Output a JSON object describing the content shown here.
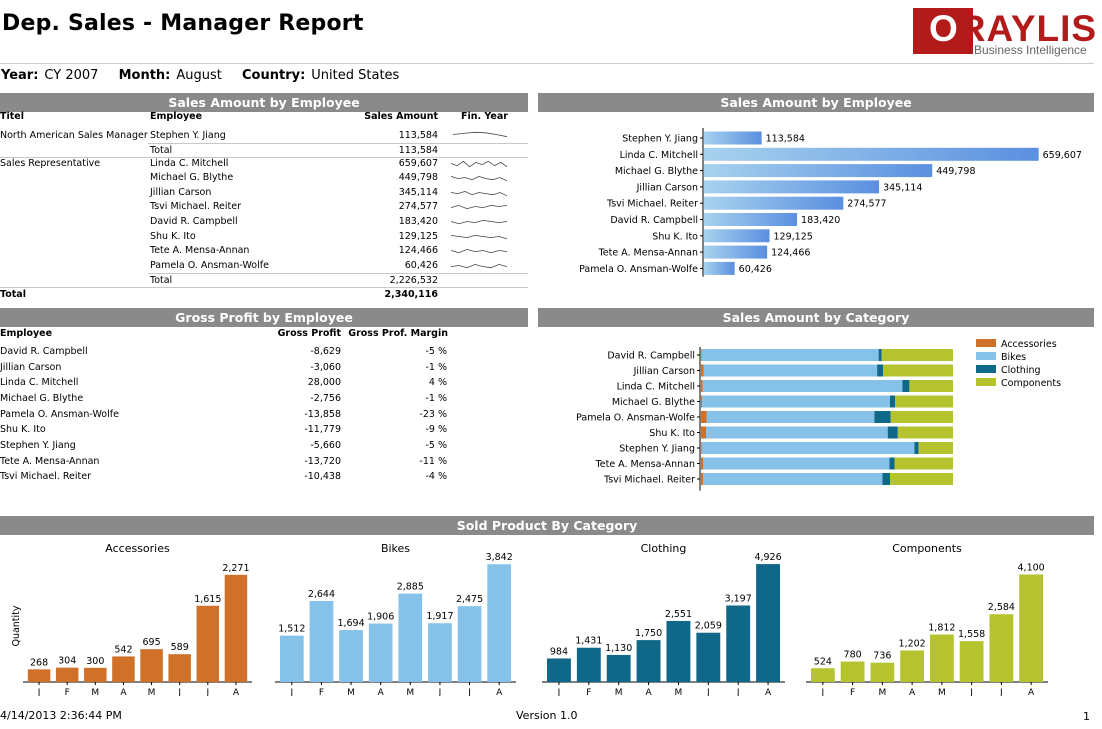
{
  "report": {
    "title": "Dep. Sales - Manager Report",
    "filters": [
      {
        "label": "Year:",
        "value": "CY 2007"
      },
      {
        "label": "Month:",
        "value": "August"
      },
      {
        "label": "Country:",
        "value": "United States"
      }
    ],
    "footer": {
      "timestamp": "4/14/2013 2:36:44 PM",
      "version": "Version 1.0",
      "page": "1"
    }
  },
  "logo": {
    "text": "ORAYLIS",
    "first_letter": "O",
    "rest": "RAYLIS",
    "tagline": "Business Intelligence",
    "color": "#b31b1b"
  },
  "sales_table": {
    "title": "Sales Amount by Employee",
    "columns": [
      "Titel",
      "Employee",
      "Sales Amount",
      "Fin. Year"
    ],
    "groups": [
      {
        "titel": "North American Sales Manager",
        "rows": [
          {
            "employee": "Stephen Y. Jiang",
            "amount": "113,584",
            "spark": [
              0.5,
              0.6,
              0.7,
              0.65,
              0.5,
              0.3
            ]
          }
        ],
        "total_label": "Total",
        "total": "113,584"
      },
      {
        "titel": "Sales Representative",
        "rows": [
          {
            "employee": "Linda C. Mitchell",
            "amount": "659,607",
            "spark": [
              0.5,
              0.3,
              0.7,
              0.2,
              0.6,
              0.4,
              0.7,
              0.3,
              0.6,
              0.2
            ]
          },
          {
            "employee": "Michael G. Blythe",
            "amount": "449,798",
            "spark": [
              0.6,
              0.4,
              0.5,
              0.3,
              0.6,
              0.4,
              0.3,
              0.5,
              0.2
            ]
          },
          {
            "employee": "Jillian Carson",
            "amount": "345,114",
            "spark": [
              0.5,
              0.4,
              0.6,
              0.3,
              0.5,
              0.4,
              0.3,
              0.5,
              0.2
            ]
          },
          {
            "employee": "Tsvi Michael. Reiter",
            "amount": "274,577",
            "spark": [
              0.4,
              0.6,
              0.3,
              0.5,
              0.4,
              0.6,
              0.5,
              0.6
            ]
          },
          {
            "employee": "David R. Campbell",
            "amount": "183,420",
            "spark": [
              0.5,
              0.3,
              0.5,
              0.4,
              0.6,
              0.5,
              0.4,
              0.5
            ]
          },
          {
            "employee": "Shu K. Ito",
            "amount": "129,125",
            "spark": [
              0.6,
              0.5,
              0.4,
              0.6,
              0.5,
              0.4,
              0.5,
              0.3
            ]
          },
          {
            "employee": "Tete A. Mensa-Annan",
            "amount": "124,466",
            "spark": [
              0.5,
              0.3,
              0.6,
              0.4,
              0.5,
              0.3,
              0.5,
              0.4
            ]
          },
          {
            "employee": "Pamela O. Ansman-Wolfe",
            "amount": "60,426",
            "spark": [
              0.4,
              0.5,
              0.3,
              0.6,
              0.4,
              0.3,
              0.6,
              0.4
            ]
          }
        ],
        "total_label": "Total",
        "total": "2,226,532"
      }
    ],
    "grand_total_label": "Total",
    "grand_total": "2,340,116"
  },
  "gross_table": {
    "title": "Gross Profit by Employee",
    "columns": [
      "Employee",
      "Gross Profit",
      "Gross Prof. Margin"
    ],
    "rows": [
      {
        "employee": "David R. Campbell",
        "profit": "-8,629",
        "margin": "-5 %"
      },
      {
        "employee": "Jillian Carson",
        "profit": "-3,060",
        "margin": "-1 %"
      },
      {
        "employee": "Linda C. Mitchell",
        "profit": "28,000",
        "margin": "4 %"
      },
      {
        "employee": "Michael G. Blythe",
        "profit": "-2,756",
        "margin": "-1 %"
      },
      {
        "employee": "Pamela O. Ansman-Wolfe",
        "profit": "-13,858",
        "margin": "-23 %"
      },
      {
        "employee": "Shu K. Ito",
        "profit": "-11,779",
        "margin": "-9 %"
      },
      {
        "employee": "Stephen Y. Jiang",
        "profit": "-5,660",
        "margin": "-5 %"
      },
      {
        "employee": "Tete A. Mensa-Annan",
        "profit": "-13,720",
        "margin": "-11 %"
      },
      {
        "employee": "Tsvi Michael. Reiter",
        "profit": "-10,438",
        "margin": "-4 %"
      }
    ]
  },
  "section_title": "Sold Product By Category",
  "colors": {
    "header_gray": "#8a8a8a",
    "bar_blue_light": "#a7d2ee",
    "bar_blue_dark": "#5b8fe0",
    "accessories": "#d0712a",
    "bikes": "#85c1e8",
    "clothing": "#106889",
    "components": "#b5c32f"
  },
  "chart_data": [
    {
      "type": "bar",
      "orientation": "horizontal",
      "title": "Sales Amount by Employee",
      "categories": [
        "Stephen Y. Jiang",
        "Linda C. Mitchell",
        "Michael G. Blythe",
        "Jillian Carson",
        "Tsvi Michael. Reiter",
        "David R. Campbell",
        "Shu K. Ito",
        "Tete A. Mensa-Annan",
        "Pamela O. Ansman-Wolfe"
      ],
      "values": [
        113584,
        659607,
        449798,
        345114,
        274577,
        183420,
        129125,
        124466,
        60426
      ],
      "labels": [
        "113,584",
        "659,607",
        "449,798",
        "345,114",
        "274,577",
        "183,420",
        "129,125",
        "124,466",
        "60,426"
      ],
      "xlim": [
        0,
        680000
      ]
    },
    {
      "type": "bar",
      "orientation": "horizontal",
      "stacked": "percent",
      "title": "Sales Amount by Category",
      "categories": [
        "David R. Campbell",
        "Jillian Carson",
        "Linda C. Mitchell",
        "Michael G. Blythe",
        "Pamela O. Ansman-Wolfe",
        "Shu K. Ito",
        "Stephen Y. Jiang",
        "Tete A. Mensa-Annan",
        "Tsvi Michael. Reiter"
      ],
      "series": [
        {
          "name": "Accessories",
          "values": [
            0.3,
            1.0,
            0.7,
            0.5,
            2.3,
            2.0,
            0.3,
            0.8,
            0.8
          ]
        },
        {
          "name": "Bikes",
          "values": [
            70.2,
            68.9,
            79.2,
            74.5,
            66.5,
            72.1,
            84.4,
            74.0,
            71.2
          ]
        },
        {
          "name": "Clothing",
          "values": [
            1.2,
            2.4,
            2.8,
            2.0,
            6.4,
            4.0,
            1.6,
            2.0,
            3.0
          ]
        },
        {
          "name": "Components",
          "values": [
            28.3,
            27.7,
            17.3,
            23.0,
            24.8,
            21.9,
            13.7,
            23.2,
            25.0
          ]
        }
      ],
      "legend": "right",
      "xlim": [
        0,
        100
      ]
    },
    {
      "type": "bar",
      "title": "Accessories",
      "ylabel": "Quantity",
      "categories": [
        "J",
        "F",
        "M",
        "A",
        "M",
        "J",
        "J",
        "A"
      ],
      "values": [
        268,
        304,
        300,
        542,
        695,
        589,
        1615,
        2271
      ],
      "labels": [
        "268",
        "304",
        "300",
        "542",
        "695",
        "589",
        "1,615",
        "2,271"
      ],
      "ylim": [
        0,
        2500
      ],
      "color": "#d0712a"
    },
    {
      "type": "bar",
      "title": "Bikes",
      "categories": [
        "J",
        "F",
        "M",
        "A",
        "M",
        "J",
        "J",
        "A"
      ],
      "values": [
        1512,
        2644,
        1694,
        1906,
        2885,
        1917,
        2475,
        3842
      ],
      "labels": [
        "1,512",
        "2,644",
        "1,694",
        "1,906",
        "2,885",
        "1,917",
        "2,475",
        "3,842"
      ],
      "ylim": [
        0,
        3850
      ],
      "color": "#85c1e8"
    },
    {
      "type": "bar",
      "title": "Clothing",
      "categories": [
        "J",
        "F",
        "M",
        "A",
        "M",
        "J",
        "J",
        "A"
      ],
      "values": [
        984,
        1431,
        1130,
        1750,
        2551,
        2059,
        3197,
        4926
      ],
      "labels": [
        "984",
        "1,431",
        "1,130",
        "1,750",
        "2,551",
        "2,059",
        "3,197",
        "4,926"
      ],
      "ylim": [
        0,
        4930
      ],
      "color": "#106889"
    },
    {
      "type": "bar",
      "title": "Components",
      "categories": [
        "J",
        "F",
        "M",
        "A",
        "M",
        "J",
        "J",
        "A"
      ],
      "values": [
        524,
        780,
        736,
        1202,
        1812,
        1558,
        2584,
        4100
      ],
      "labels": [
        "524",
        "780",
        "736",
        "1,202",
        "1,812",
        "1,558",
        "2,584",
        "4,100"
      ],
      "ylim": [
        0,
        4500
      ],
      "color": "#b5c32f"
    }
  ]
}
